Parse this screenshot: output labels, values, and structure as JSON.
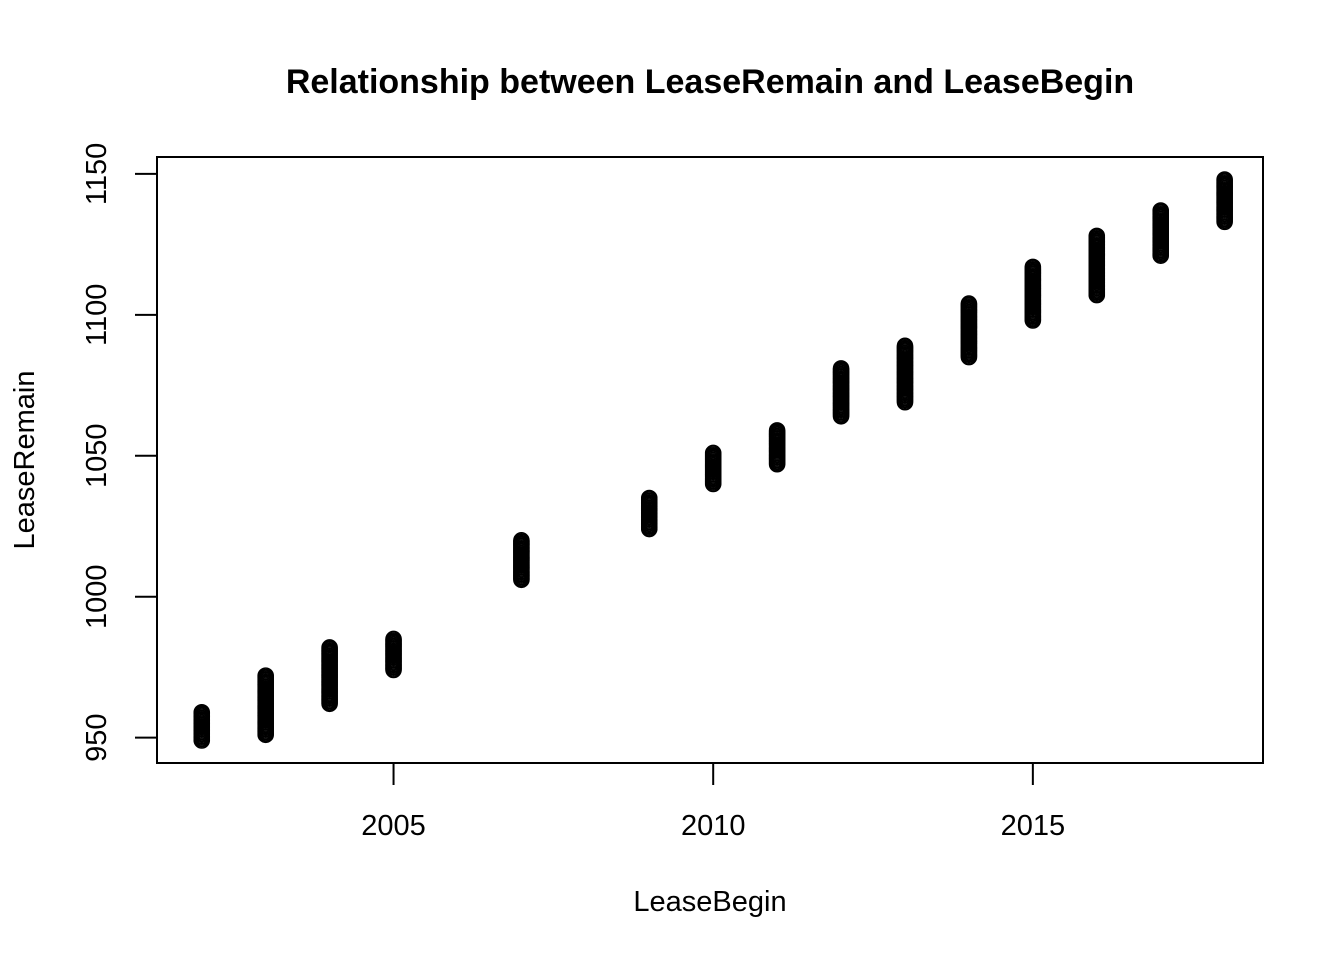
{
  "chart_data": {
    "type": "scatter",
    "title": "Relationship between LeaseRemain and LeaseBegin",
    "xlabel": "LeaseBegin",
    "ylabel": "LeaseRemain",
    "xlim": [
      2001.3,
      2018.6
    ],
    "ylim": [
      941,
      1156
    ],
    "xticks": [
      2005,
      2010,
      2015
    ],
    "yticks": [
      950,
      1000,
      1050,
      1100,
      1150
    ],
    "grid": false,
    "legend": "none",
    "marker": "open-circle",
    "color": "#000000",
    "groups": [
      {
        "x": 2002,
        "y_min": 949,
        "y_max": 959
      },
      {
        "x": 2003,
        "y_min": 951,
        "y_max": 972
      },
      {
        "x": 2004,
        "y_min": 962,
        "y_max": 982
      },
      {
        "x": 2005,
        "y_min": 974,
        "y_max": 985
      },
      {
        "x": 2007,
        "y_min": 1006,
        "y_max": 1020
      },
      {
        "x": 2009,
        "y_min": 1024,
        "y_max": 1035
      },
      {
        "x": 2010,
        "y_min": 1040,
        "y_max": 1051
      },
      {
        "x": 2011,
        "y_min": 1047,
        "y_max": 1059
      },
      {
        "x": 2012,
        "y_min": 1064,
        "y_max": 1081
      },
      {
        "x": 2013,
        "y_min": 1069,
        "y_max": 1089
      },
      {
        "x": 2014,
        "y_min": 1085,
        "y_max": 1104
      },
      {
        "x": 2015,
        "y_min": 1098,
        "y_max": 1117
      },
      {
        "x": 2016,
        "y_min": 1107,
        "y_max": 1128
      },
      {
        "x": 2017,
        "y_min": 1121,
        "y_max": 1137
      },
      {
        "x": 2018,
        "y_min": 1133,
        "y_max": 1148
      }
    ]
  }
}
